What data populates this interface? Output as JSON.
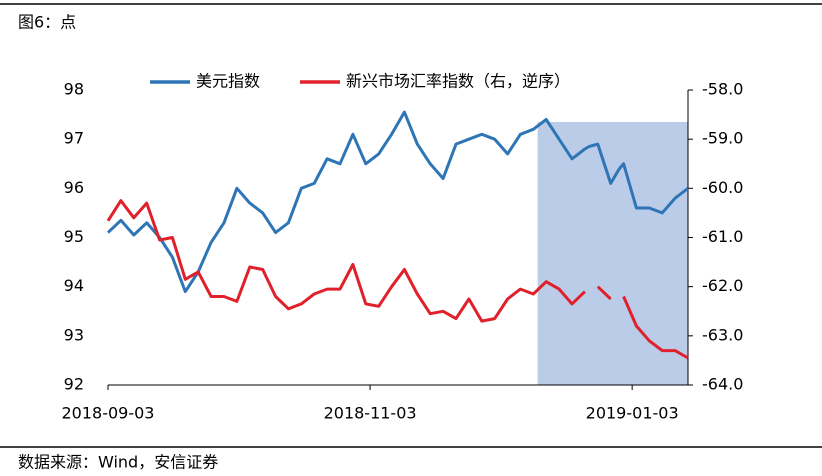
{
  "chart_data": {
    "type": "line",
    "title": "图6：点",
    "source": "数据来源：Wind，安信证券",
    "x": [
      "2018-09-03",
      "2018-09-06",
      "2018-09-09",
      "2018-09-12",
      "2018-09-15",
      "2018-09-18",
      "2018-09-21",
      "2018-09-24",
      "2018-09-27",
      "2018-09-30",
      "2018-10-03",
      "2018-10-06",
      "2018-10-09",
      "2018-10-12",
      "2018-10-15",
      "2018-10-18",
      "2018-10-21",
      "2018-10-24",
      "2018-10-27",
      "2018-10-30",
      "2018-11-02",
      "2018-11-05",
      "2018-11-08",
      "2018-11-11",
      "2018-11-14",
      "2018-11-17",
      "2018-11-20",
      "2018-11-23",
      "2018-11-26",
      "2018-11-29",
      "2018-12-02",
      "2018-12-05",
      "2018-12-08",
      "2018-12-11",
      "2018-12-14",
      "2018-12-17",
      "2018-12-20",
      "2018-12-23",
      "2018-12-24",
      "2018-12-26",
      "2018-12-29",
      "2018-12-31",
      "2019-01-01",
      "2019-01-04",
      "2019-01-07",
      "2019-01-10",
      "2019-01-13",
      "2019-01-16"
    ],
    "series": [
      {
        "name": "美元指数",
        "color": "#2e75b6",
        "axis": "y",
        "values": [
          95.1,
          95.35,
          95.05,
          95.3,
          95.0,
          94.6,
          93.9,
          94.3,
          94.9,
          95.3,
          96.0,
          95.7,
          95.5,
          95.1,
          95.3,
          96.0,
          96.1,
          96.6,
          96.5,
          97.1,
          96.5,
          96.7,
          97.1,
          97.55,
          96.9,
          96.5,
          96.2,
          96.9,
          97.0,
          97.1,
          97.0,
          96.7,
          97.1,
          97.2,
          97.4,
          97.0,
          96.6,
          96.8,
          96.85,
          96.9,
          96.1,
          96.4,
          96.5,
          95.6,
          95.6,
          95.5,
          95.8,
          96.0
        ]
      },
      {
        "name": "新兴市场汇率指数（右，逆序）",
        "color": "#e0202a",
        "axis": "y2",
        "values": [
          -60.66,
          -60.25,
          -60.6,
          -60.3,
          -61.05,
          -61.0,
          -61.85,
          -61.7,
          -62.2,
          -62.2,
          -62.3,
          -61.6,
          -61.65,
          -62.2,
          -62.45,
          -62.35,
          -62.15,
          -62.05,
          -62.05,
          -61.55,
          -62.35,
          -62.4,
          -62.0,
          -61.65,
          -62.15,
          -62.55,
          -62.5,
          -62.65,
          -62.25,
          -62.7,
          -62.65,
          -62.25,
          -62.05,
          -62.15,
          -61.9,
          -62.05,
          -62.35,
          -62.1,
          null,
          -62.0,
          -62.25,
          null,
          -62.2,
          -62.8,
          -63.1,
          -63.3,
          -63.3,
          -63.45
        ]
      }
    ],
    "xlim": [
      "2018-09-03",
      "2019-01-16"
    ],
    "xticks": [
      "2018-09-03",
      "2018-11-03",
      "2019-01-03"
    ],
    "ylim": [
      92,
      98
    ],
    "yticks": [
      92,
      93,
      94,
      95,
      96,
      97,
      98
    ],
    "y2lim": [
      -64,
      -58
    ],
    "y2ticks": [
      {
        "value": -64,
        "label": "-64.0"
      },
      {
        "value": -63,
        "label": "-63.0"
      },
      {
        "value": -62,
        "label": "-62.0"
      },
      {
        "value": -61,
        "label": "-61.0"
      },
      {
        "value": -60,
        "label": "-60.0"
      },
      {
        "value": -59,
        "label": "-59.0"
      },
      {
        "value": -58,
        "label": "-58.0"
      }
    ],
    "shaded_region": {
      "x": [
        "2018-12-12",
        "2019-01-16"
      ],
      "y": [
        92,
        97.35
      ],
      "color": "#b4c7e7"
    },
    "legend": "top"
  }
}
